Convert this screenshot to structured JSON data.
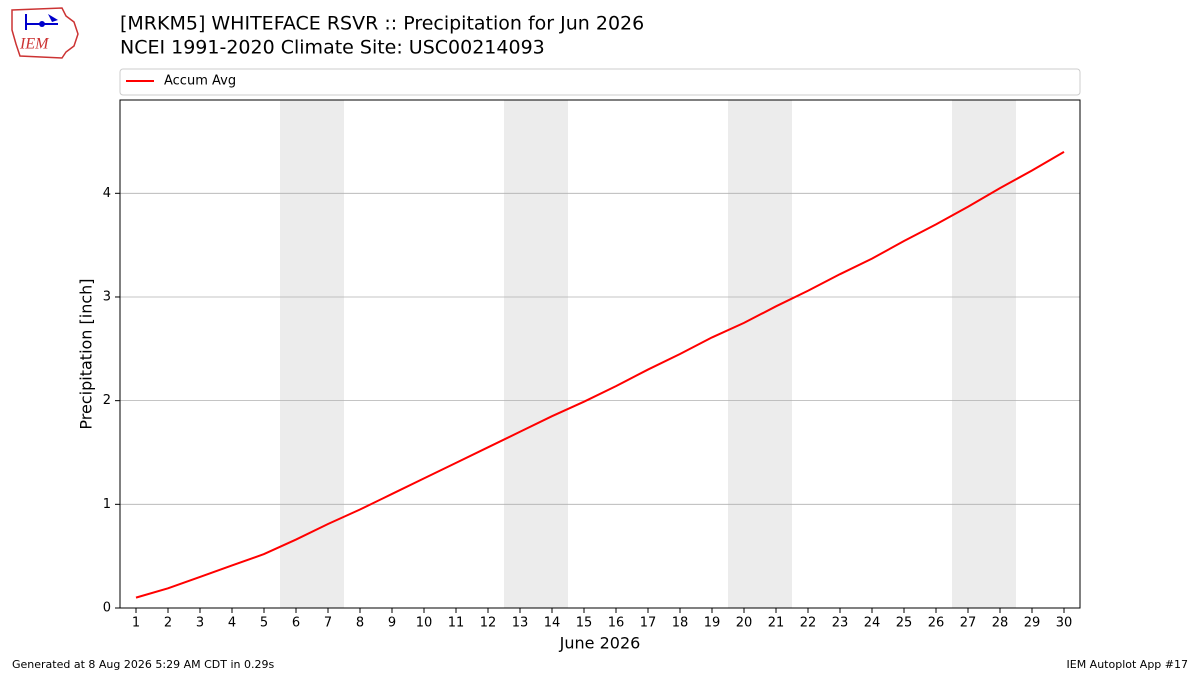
{
  "logo_text": "IEM",
  "footer_left": "Generated at 8 Aug 2026 5:29 AM CDT in 0.29s",
  "footer_right": "IEM Autoplot App #17",
  "chart_data": {
    "type": "line",
    "title": "[MRKM5] WHITEFACE RSVR :: Precipitation for Jun 2026",
    "subtitle": "NCEI 1991-2020 Climate Site: USC00214093",
    "x_label": "June 2026",
    "y_label": "Precipitation [inch]",
    "x": [
      1,
      2,
      3,
      4,
      5,
      6,
      7,
      8,
      9,
      10,
      11,
      12,
      13,
      14,
      15,
      16,
      17,
      18,
      19,
      20,
      21,
      22,
      23,
      24,
      25,
      26,
      27,
      28,
      29,
      30
    ],
    "series": [
      {
        "name": "Accum Avg",
        "color": "#ff0000",
        "values": [
          0.1,
          0.19,
          0.3,
          0.41,
          0.52,
          0.66,
          0.81,
          0.95,
          1.1,
          1.25,
          1.4,
          1.55,
          1.7,
          1.85,
          1.99,
          2.14,
          2.3,
          2.45,
          2.61,
          2.75,
          2.91,
          3.06,
          3.22,
          3.37,
          3.54,
          3.7,
          3.87,
          4.05,
          4.22,
          4.4
        ]
      }
    ],
    "shaded_spans": [
      [
        5.5,
        7.5
      ],
      [
        12.5,
        14.5
      ],
      [
        19.5,
        21.5
      ],
      [
        26.5,
        28.5
      ]
    ],
    "shade_color": "#ececec",
    "xlim": [
      0.5,
      30.5
    ],
    "xticks": [
      1,
      2,
      3,
      4,
      5,
      6,
      7,
      8,
      9,
      10,
      11,
      12,
      13,
      14,
      15,
      16,
      17,
      18,
      19,
      20,
      21,
      22,
      23,
      24,
      25,
      26,
      27,
      28,
      29,
      30
    ],
    "ylim": [
      0,
      4.9
    ],
    "yticks": [
      0,
      1,
      2,
      3,
      4
    ],
    "grid": true,
    "legend": "top"
  }
}
